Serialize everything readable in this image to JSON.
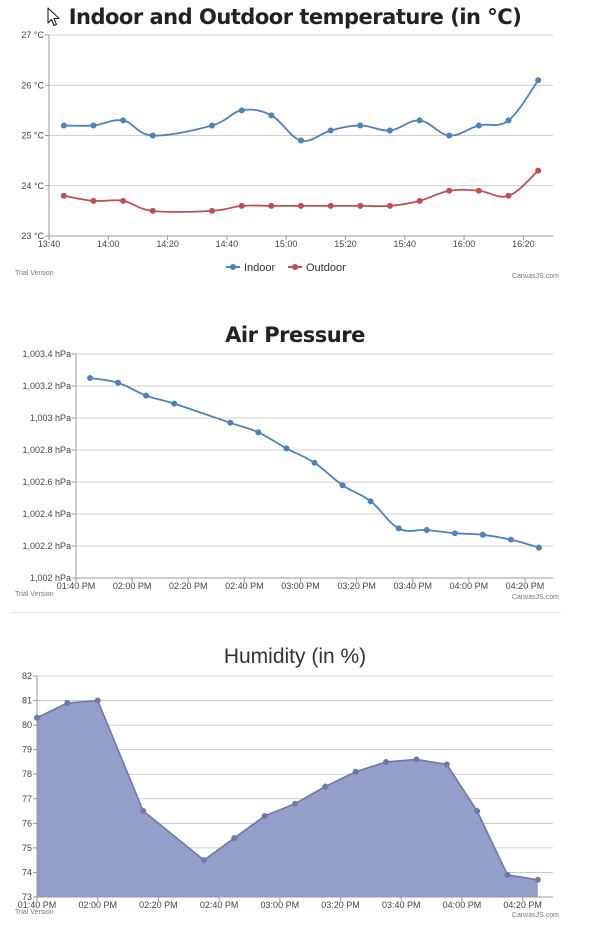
{
  "colors": {
    "indoor": "#4f81bc",
    "outdoor": "#c0504e",
    "pressure": "#4f81bc",
    "humidity_line": "#6d78ad",
    "humidity_fill": "#8a93c3",
    "grid": "#bfbfbf",
    "axis": "#999999"
  },
  "watermark": {
    "left": "Trial Version",
    "right": "CanvasJS.com"
  },
  "chart_data": [
    {
      "id": "temp",
      "type": "line",
      "title": "Indoor and Outdoor temperature (in °C)",
      "x_unit": "minutes",
      "x_ticks": [
        "13:40",
        "14:00",
        "14:20",
        "14:40",
        "15:00",
        "15:20",
        "15:40",
        "16:00",
        "16:20"
      ],
      "xlim": [
        "13:40",
        "16:30"
      ],
      "y_ticks": [
        "23 °C",
        "24 °C",
        "25 °C",
        "26 °C",
        "27 °C"
      ],
      "ylim": [
        23,
        27
      ],
      "grid": true,
      "legend": "bottom-center",
      "series": [
        {
          "name": "Indoor",
          "x": [
            "13:45",
            "13:55",
            "14:05",
            "14:15",
            "14:35",
            "14:45",
            "14:55",
            "15:05",
            "15:15",
            "15:25",
            "15:35",
            "15:45",
            "15:55",
            "16:05",
            "16:15",
            "16:25"
          ],
          "y": [
            25.2,
            25.2,
            25.3,
            25.0,
            25.2,
            25.5,
            25.4,
            24.9,
            25.1,
            25.2,
            25.1,
            25.3,
            25.0,
            25.2,
            25.3,
            26.1
          ]
        },
        {
          "name": "Outdoor",
          "x": [
            "13:45",
            "13:55",
            "14:05",
            "14:15",
            "14:35",
            "14:45",
            "14:55",
            "15:05",
            "15:15",
            "15:25",
            "15:35",
            "15:45",
            "15:55",
            "16:05",
            "16:15",
            "16:25"
          ],
          "y": [
            23.8,
            23.7,
            23.7,
            23.5,
            23.5,
            23.6,
            23.6,
            23.6,
            23.6,
            23.6,
            23.6,
            23.7,
            23.9,
            23.9,
            23.8,
            24.3
          ]
        }
      ]
    },
    {
      "id": "press",
      "type": "line",
      "title": "Air Pressure",
      "x_ticks": [
        "01:40 PM",
        "02:00 PM",
        "02:20 PM",
        "02:40 PM",
        "03:00 PM",
        "03:20 PM",
        "03:40 PM",
        "04:00 PM",
        "04:20 PM"
      ],
      "xlim": [
        "13:40",
        "16:30"
      ],
      "y_ticks": [
        "1,002 hPa",
        "1,002.2 hPa",
        "1,002.4 hPa",
        "1,002.6 hPa",
        "1,002.8 hPa",
        "1,003 hPa",
        "1,003.2 hPa",
        "1,003.4 hPa"
      ],
      "ylim": [
        1002,
        1003.4
      ],
      "grid": true,
      "series": [
        {
          "x": [
            "13:45",
            "13:55",
            "14:05",
            "14:15",
            "14:35",
            "14:45",
            "14:55",
            "15:05",
            "15:15",
            "15:25",
            "15:35",
            "15:45",
            "15:55",
            "16:05",
            "16:15",
            "16:25"
          ],
          "y": [
            1003.25,
            1003.22,
            1003.14,
            1003.09,
            1002.97,
            1002.91,
            1002.81,
            1002.72,
            1002.58,
            1002.48,
            1002.31,
            1002.3,
            1002.28,
            1002.27,
            1002.24,
            1002.19
          ]
        }
      ]
    },
    {
      "id": "hum",
      "type": "area",
      "title": "Humidity (in %)",
      "x_ticks": [
        "01:40 PM",
        "02:00 PM",
        "02:20 PM",
        "02:40 PM",
        "03:00 PM",
        "03:20 PM",
        "03:40 PM",
        "04:00 PM",
        "04:20 PM"
      ],
      "xlim": [
        "13:40",
        "16:30"
      ],
      "y_ticks": [
        "73",
        "74",
        "75",
        "76",
        "77",
        "78",
        "79",
        "80",
        "81",
        "82"
      ],
      "ylim": [
        73,
        82
      ],
      "grid": true,
      "series": [
        {
          "x": [
            "13:40",
            "13:50",
            "14:00",
            "14:15",
            "14:35",
            "14:45",
            "14:55",
            "15:05",
            "15:15",
            "15:25",
            "15:35",
            "15:45",
            "15:55",
            "16:05",
            "16:15",
            "16:25"
          ],
          "y": [
            80.3,
            80.9,
            81.0,
            76.5,
            74.5,
            75.4,
            76.3,
            76.8,
            77.5,
            78.1,
            78.5,
            78.6,
            78.4,
            76.5,
            73.9,
            73.7
          ]
        }
      ]
    }
  ]
}
